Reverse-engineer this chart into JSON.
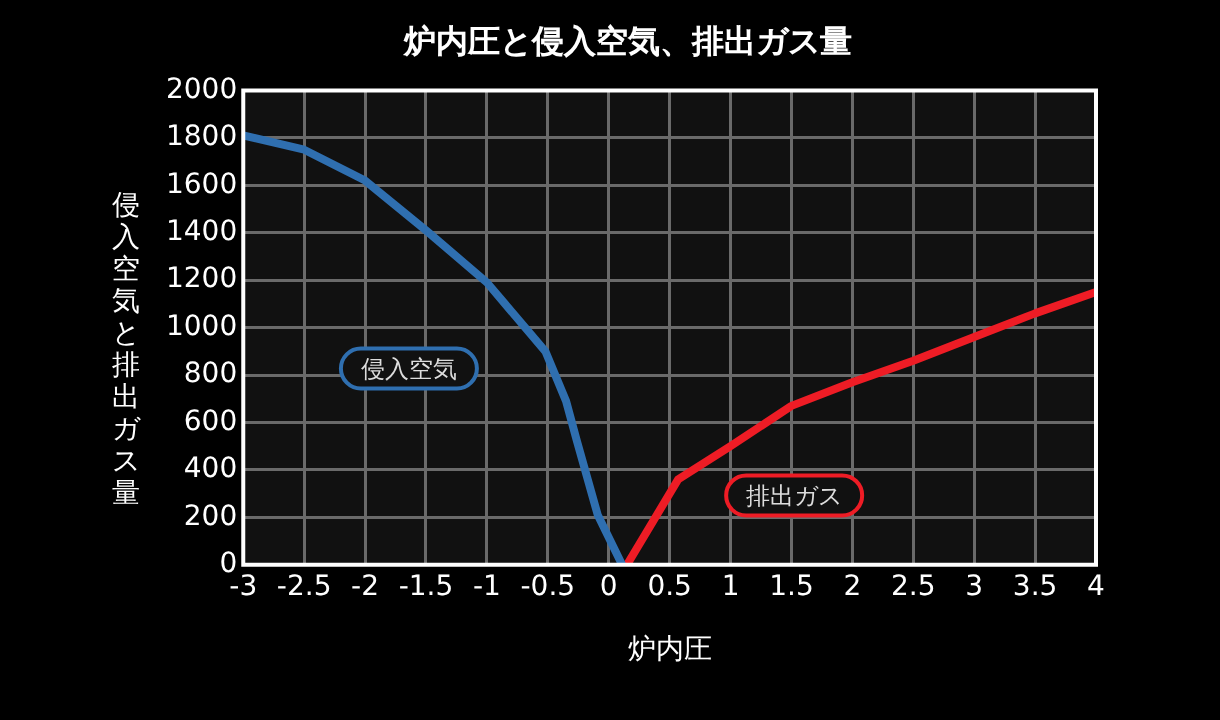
{
  "chart_data": {
    "type": "line",
    "title": "炉内圧と侵入空気、排出ガス量",
    "xlabel": "炉内圧",
    "ylabel": "侵入空気と排出ガス量",
    "series": [
      {
        "name": "侵入空気",
        "color": "#2f6fb0",
        "x": [
          -3,
          -2.5,
          -2,
          -1.5,
          -1,
          -0.52,
          -0.35,
          -0.26,
          -0.09,
          0.11
        ],
        "values": [
          1810,
          1750,
          1620,
          1410,
          1190,
          900,
          690,
          520,
          210,
          0
        ]
      },
      {
        "name": "排出ガス",
        "color": "#ee1c25",
        "x": [
          0.15,
          0.57,
          1,
          1.5,
          2,
          2.5,
          3,
          3.5,
          4
        ],
        "values": [
          0,
          360,
          500,
          670,
          770,
          860,
          960,
          1060,
          1150
        ]
      }
    ],
    "xlim": [
      -3,
      4
    ],
    "xticks": [
      -3,
      -2.5,
      -2,
      -1.5,
      -1,
      -0.5,
      0,
      0.5,
      1,
      1.5,
      2,
      2.5,
      3,
      3.5,
      4
    ],
    "ylim": [
      0,
      2000
    ],
    "yticks": [
      0,
      200,
      400,
      600,
      800,
      1000,
      1200,
      1400,
      1600,
      1800,
      2000
    ],
    "grid": true,
    "legend": false,
    "marker": "none",
    "line_style": "solid"
  }
}
